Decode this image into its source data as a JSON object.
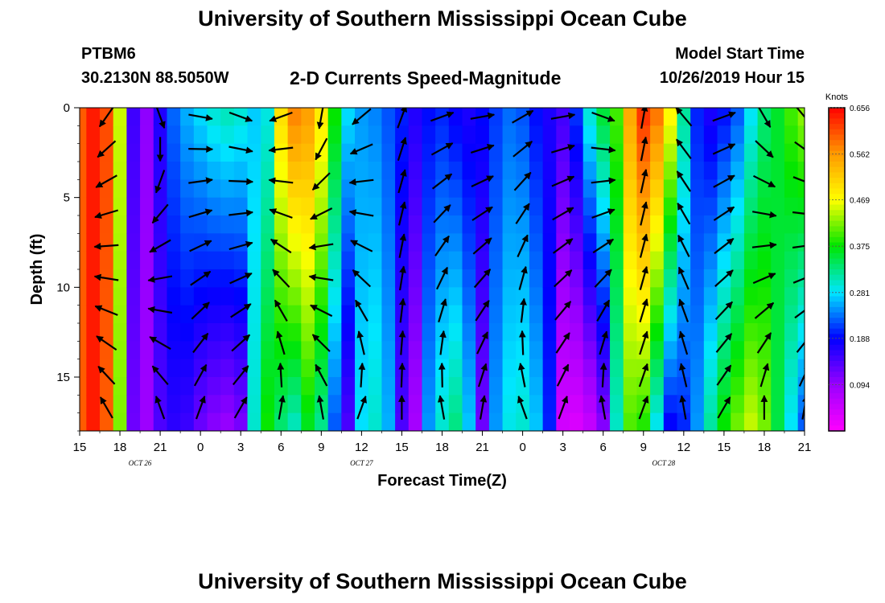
{
  "header": {
    "title": "University of Southern Mississippi Ocean Cube",
    "station_id": "PTBM6",
    "station_coords": "30.2130N 88.5050W",
    "chart_title": "2-D Currents Speed-Magnitude",
    "model_start_label": "Model Start Time",
    "model_start_value": "10/26/2019 Hour 15"
  },
  "footer": {
    "title": "University of Southern Mississippi Ocean Cube"
  },
  "chart_data": {
    "type": "heatmap",
    "title": "2-D Currents Speed-Magnitude",
    "xlabel": "Forecast Time(Z)",
    "ylabel": "Depth (ft)",
    "x_tick_labels": [
      "15",
      "18",
      "21",
      "0",
      "3",
      "6",
      "9",
      "12",
      "15",
      "18",
      "21",
      "0",
      "3",
      "6",
      "9",
      "12",
      "15",
      "18",
      "21"
    ],
    "date_labels": [
      {
        "label": "OCT 26",
        "tick_index": 1.5
      },
      {
        "label": "OCT 27",
        "tick_index": 7
      },
      {
        "label": "OCT 28",
        "tick_index": 14.5
      }
    ],
    "x_hours": [
      0,
      54
    ],
    "y_ticks": [
      0,
      5,
      10,
      15
    ],
    "ylim": [
      0,
      18
    ],
    "y_inverted": true,
    "colorbar": {
      "label": "Knots",
      "ticks": [
        "0.656",
        "0.562",
        "0.469",
        "0.375",
        "0.281",
        "0.188",
        "0.094"
      ],
      "range": [
        0,
        0.656
      ],
      "colors": [
        "#ff00ff",
        "#9900ff",
        "#0000ff",
        "#00e6ff",
        "#00e600",
        "#ffff00",
        "#ff9900",
        "#ff0000"
      ]
    },
    "speed_profile": {
      "hours": [
        0,
        1,
        2,
        3,
        4,
        5,
        6,
        7,
        8,
        9,
        10,
        11,
        12,
        13,
        14,
        15,
        16,
        17,
        18,
        19,
        20,
        21,
        22,
        23,
        24,
        25,
        26,
        27,
        28,
        29,
        30,
        31,
        32,
        33,
        34,
        35,
        36,
        37,
        38,
        39,
        40,
        41,
        42,
        43,
        44,
        45,
        46,
        47,
        48,
        49,
        50,
        51,
        52,
        53,
        54
      ],
      "surface_knots": [
        0.6,
        0.64,
        0.61,
        0.45,
        0.15,
        0.1,
        0.17,
        0.23,
        0.26,
        0.28,
        0.3,
        0.31,
        0.3,
        0.27,
        0.29,
        0.5,
        0.58,
        0.56,
        0.49,
        0.38,
        0.28,
        0.25,
        0.24,
        0.22,
        0.2,
        0.17,
        0.19,
        0.2,
        0.18,
        0.17,
        0.19,
        0.21,
        0.23,
        0.22,
        0.19,
        0.17,
        0.15,
        0.21,
        0.3,
        0.36,
        0.4,
        0.55,
        0.63,
        0.59,
        0.48,
        0.32,
        0.2,
        0.17,
        0.19,
        0.22,
        0.28,
        0.33,
        0.36,
        0.4,
        0.43
      ],
      "bottom_knots": [
        0.6,
        0.64,
        0.6,
        0.42,
        0.12,
        0.09,
        0.14,
        0.16,
        0.15,
        0.12,
        0.1,
        0.09,
        0.11,
        0.3,
        0.38,
        0.33,
        0.3,
        0.36,
        0.32,
        0.22,
        0.14,
        0.28,
        0.3,
        0.26,
        0.14,
        0.08,
        0.25,
        0.3,
        0.33,
        0.27,
        0.12,
        0.25,
        0.29,
        0.3,
        0.27,
        0.2,
        0.04,
        0.03,
        0.05,
        0.1,
        0.3,
        0.4,
        0.38,
        0.28,
        0.18,
        0.2,
        0.25,
        0.32,
        0.38,
        0.42,
        0.45,
        0.42,
        0.35,
        0.28,
        0.22
      ]
    },
    "vectors": {
      "hours": [
        2,
        6,
        9,
        12,
        15,
        18,
        21,
        24,
        27,
        30,
        33,
        36,
        39,
        42,
        45,
        48,
        51,
        54
      ],
      "surface_dir_deg": [
        215,
        160,
        100,
        110,
        250,
        190,
        230,
        20,
        70,
        80,
        60,
        80,
        110,
        10,
        320,
        70,
        150,
        140
      ],
      "bottom_dir_deg": [
        330,
        340,
        20,
        30,
        10,
        350,
        20,
        0,
        350,
        10,
        340,
        20,
        350,
        20,
        350,
        30,
        0,
        10
      ]
    }
  }
}
